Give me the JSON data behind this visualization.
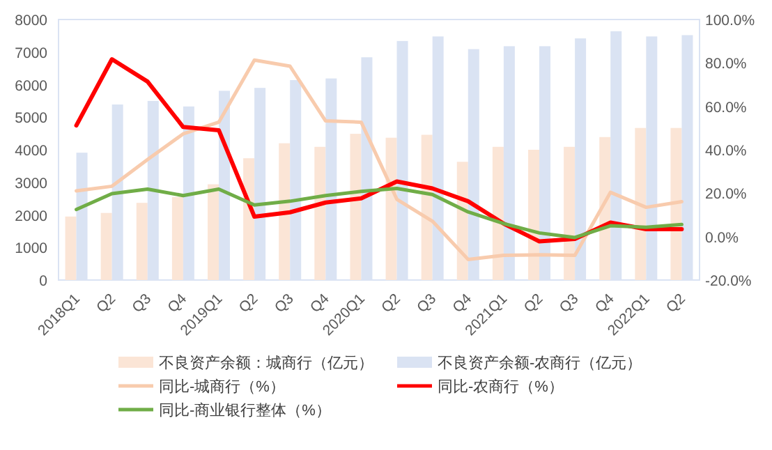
{
  "chart_data": {
    "type": "bar",
    "categories": [
      "2018Q1",
      "Q2",
      "Q3",
      "Q4",
      "2019Q1",
      "Q2",
      "Q3",
      "Q4",
      "2020Q1",
      "Q2",
      "Q3",
      "Q4",
      "2021Q1",
      "Q2",
      "Q3",
      "Q4",
      "2022Q1",
      "Q2"
    ],
    "series": [
      {
        "name": "不良资产余额：城商行（亿元）",
        "color": "#fbe5d6",
        "values": [
          1950,
          2060,
          2370,
          2550,
          2940,
          3740,
          4200,
          4090,
          4490,
          4370,
          4460,
          3630,
          4090,
          4000,
          4090,
          4390,
          4670,
          4670
        ]
      },
      {
        "name": "不良资产余额-农商行（亿元）",
        "color": "#dae3f3",
        "values": [
          3910,
          5390,
          5500,
          5330,
          5810,
          5900,
          6140,
          6190,
          6840,
          7340,
          7480,
          7090,
          7180,
          7180,
          7420,
          7640,
          7480,
          7520
        ]
      },
      {
        "name": "同比-城商行（%）",
        "type": "line",
        "axis": "y2",
        "color": "#f8cbad",
        "values": [
          21.1,
          23.2,
          35.5,
          47.3,
          52.7,
          81.3,
          78.5,
          53.3,
          52.7,
          17.2,
          7.1,
          -10.5,
          -8.6,
          -8.4,
          -8.6,
          20.4,
          13.5,
          16.1
        ]
      },
      {
        "name": "同比-农商行（%）",
        "type": "line",
        "axis": "y2",
        "color": "#ff0000",
        "values": [
          51.2,
          81.7,
          71.4,
          50.5,
          49.0,
          9.2,
          11.2,
          15.7,
          17.6,
          25.4,
          22.2,
          16.3,
          6.0,
          -2.2,
          -1.1,
          6.5,
          3.4,
          3.4
        ]
      },
      {
        "name": "同比-商业银行整体（%）",
        "type": "line",
        "axis": "y2",
        "color": "#70ad47",
        "values": [
          12.5,
          19.8,
          21.9,
          18.9,
          21.9,
          14.6,
          16.3,
          18.9,
          20.8,
          22.2,
          19.4,
          11.4,
          6.0,
          1.7,
          -0.4,
          5.0,
          4.3,
          5.6
        ]
      }
    ],
    "ylim": [
      0,
      8000
    ],
    "yticks": [
      0,
      1000,
      2000,
      3000,
      4000,
      5000,
      6000,
      7000,
      8000
    ],
    "y2lim": [
      -20,
      100
    ],
    "y2ticks": [
      {
        "value": -20,
        "label": "-20.0%"
      },
      {
        "value": 0,
        "label": "0.0%"
      },
      {
        "value": 20,
        "label": "20.0%"
      },
      {
        "value": 40,
        "label": "40.0%"
      },
      {
        "value": 60,
        "label": "60.0%"
      },
      {
        "value": 80,
        "label": "80.0%"
      },
      {
        "value": 100,
        "label": "100.0%"
      }
    ],
    "grid": false,
    "legend": "bottom"
  }
}
